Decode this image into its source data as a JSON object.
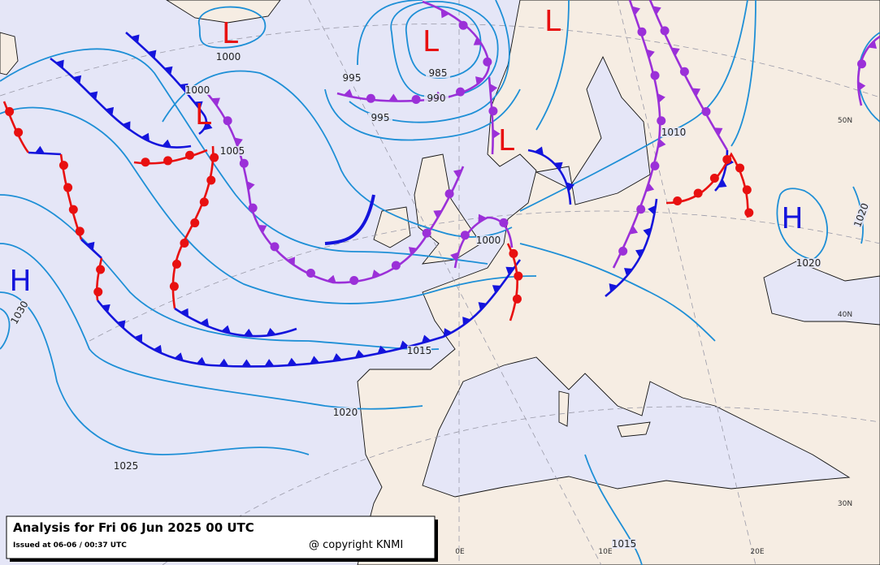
{
  "title": "Analysis for Fri 06 Jun 2025 00 UTC",
  "issued": "Issued at 06-06 / 00:37 UTC",
  "copyright": "@ copyright KNMI",
  "lows": [
    "L",
    "L",
    "L",
    "L",
    "L"
  ],
  "highs": [
    "H",
    "H"
  ],
  "isobar_labels": [
    1000,
    1000,
    1005,
    995,
    995,
    985,
    990,
    1010,
    1000,
    1015,
    1020,
    1025,
    1030,
    1020,
    1020,
    1015
  ],
  "grid_labels": [
    "50N",
    "40N",
    "30N",
    "0E",
    "10E",
    "20E"
  ]
}
